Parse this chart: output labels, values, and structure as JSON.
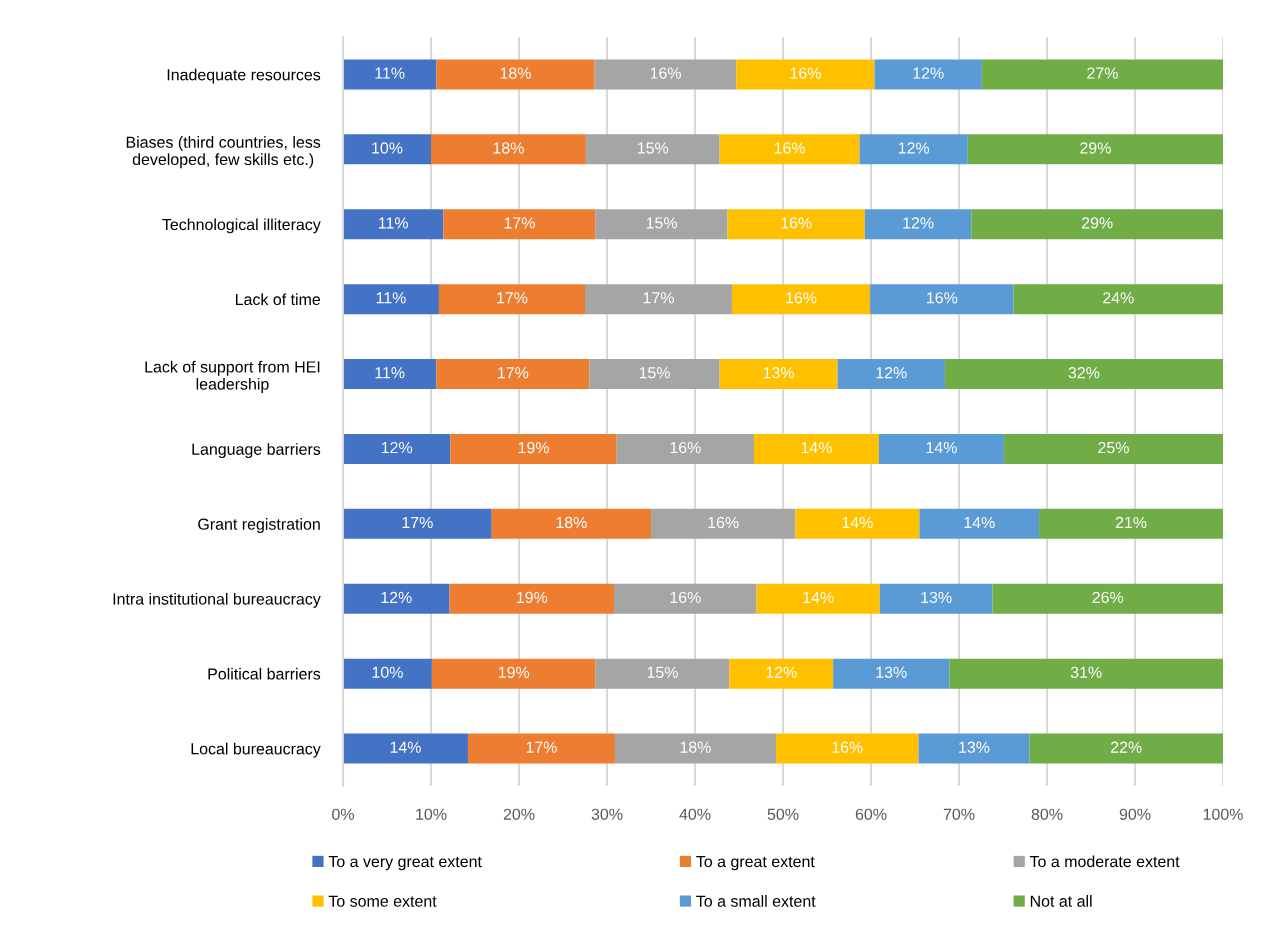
{
  "chart_data": {
    "type": "bar",
    "orientation": "horizontal",
    "stacked": true,
    "categories": [
      "Inadequate resources",
      "Biases (third countries, less developed, few skills etc.)",
      "Technological illiteracy",
      "Lack of time",
      "Lack of support from HEI leadership",
      "Language barriers",
      "Grant registration",
      "Intra institutional bureaucracy",
      "Political barriers",
      "Local bureaucracy"
    ],
    "series": [
      {
        "name": "To a very great extent",
        "color": "#4472c4",
        "values": [
          10.6,
          10.0,
          11.4,
          10.9,
          10.6,
          12.2,
          16.9,
          12.1,
          10.1,
          14.2
        ],
        "value_labels": [
          "11%",
          "10%",
          "11%",
          "11%",
          "11%",
          "12%",
          "17%",
          "12%",
          "10%",
          "14%"
        ]
      },
      {
        "name": "To a great extent",
        "color": "#ed7d31",
        "values": [
          18.0,
          17.6,
          17.3,
          16.6,
          17.4,
          18.9,
          18.1,
          18.7,
          18.6,
          16.7
        ],
        "value_labels": [
          "18%",
          "18%",
          "17%",
          "17%",
          "17%",
          "19%",
          "18%",
          "19%",
          "19%",
          "17%"
        ]
      },
      {
        "name": "To a moderate extent",
        "color": "#a5a5a5",
        "values": [
          16.1,
          15.2,
          15.0,
          16.7,
          14.8,
          15.6,
          16.4,
          16.2,
          15.2,
          18.3
        ],
        "value_labels": [
          "16%",
          "15%",
          "15%",
          "17%",
          "15%",
          "16%",
          "16%",
          "16%",
          "15%",
          "18%"
        ]
      },
      {
        "name": "To some extent",
        "color": "#ffc000",
        "values": [
          15.7,
          15.9,
          15.6,
          15.7,
          13.4,
          14.2,
          14.1,
          14.0,
          11.8,
          16.2
        ],
        "value_labels": [
          "16%",
          "16%",
          "16%",
          "16%",
          "13%",
          "14%",
          "14%",
          "14%",
          "12%",
          "16%"
        ]
      },
      {
        "name": "To a small extent",
        "color": "#5b9bd5",
        "values": [
          12.2,
          12.3,
          12.1,
          16.3,
          12.2,
          14.2,
          13.6,
          12.8,
          13.2,
          12.6
        ],
        "value_labels": [
          "12%",
          "12%",
          "12%",
          "16%",
          "12%",
          "14%",
          "14%",
          "13%",
          "13%",
          "13%"
        ]
      },
      {
        "name": "Not at all",
        "color": "#70ad47",
        "values": [
          27.4,
          29.0,
          28.6,
          23.8,
          31.6,
          24.9,
          20.9,
          26.2,
          31.1,
          22.0
        ],
        "value_labels": [
          "27%",
          "29%",
          "29%",
          "24%",
          "32%",
          "25%",
          "21%",
          "26%",
          "31%",
          "22%"
        ]
      }
    ],
    "xlim": [
      0,
      100
    ],
    "xticks": [
      {
        "value": 0,
        "label": "0%"
      },
      {
        "value": 10,
        "label": "10%"
      },
      {
        "value": 20,
        "label": "20%"
      },
      {
        "value": 30,
        "label": "30%"
      },
      {
        "value": 40,
        "label": "40%"
      },
      {
        "value": 50,
        "label": "50%"
      },
      {
        "value": 60,
        "label": "60%"
      },
      {
        "value": 70,
        "label": "70%"
      },
      {
        "value": 80,
        "label": "80%"
      },
      {
        "value": 90,
        "label": "90%"
      },
      {
        "value": 100,
        "label": "100%"
      }
    ],
    "grid": "x",
    "legend": "bottom"
  }
}
